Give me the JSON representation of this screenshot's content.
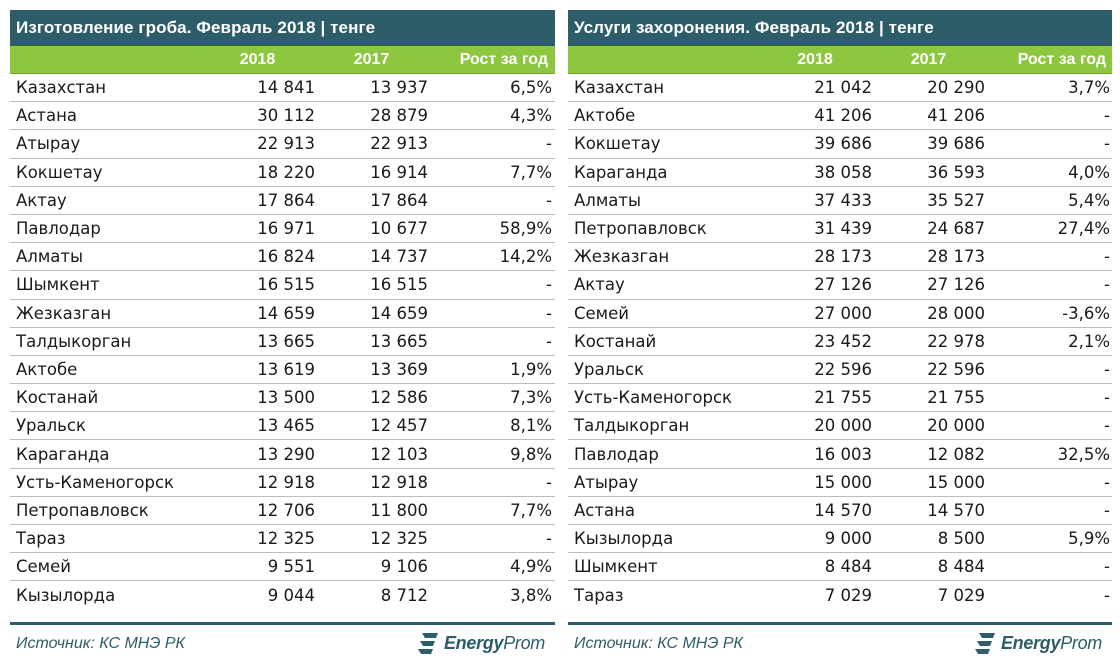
{
  "left": {
    "title": "Изготовление гроба. Февраль 2018 | тенге",
    "headers": {
      "name": "",
      "y2018": "2018",
      "y2017": "2017",
      "growth": "Рост за год"
    },
    "rows": [
      {
        "name": "Казахстан",
        "v2018": "14 841",
        "v2017": "13 937",
        "growth": "6,5%"
      },
      {
        "name": "Астана",
        "v2018": "30 112",
        "v2017": "28 879",
        "growth": "4,3%"
      },
      {
        "name": "Атырау",
        "v2018": "22 913",
        "v2017": "22 913",
        "growth": "-"
      },
      {
        "name": "Кокшетау",
        "v2018": "18 220",
        "v2017": "16 914",
        "growth": "7,7%"
      },
      {
        "name": "Актау",
        "v2018": "17 864",
        "v2017": "17 864",
        "growth": "-"
      },
      {
        "name": "Павлодар",
        "v2018": "16 971",
        "v2017": "10 677",
        "growth": "58,9%"
      },
      {
        "name": "Алматы",
        "v2018": "16 824",
        "v2017": "14 737",
        "growth": "14,2%"
      },
      {
        "name": "Шымкент",
        "v2018": "16 515",
        "v2017": "16 515",
        "growth": "-"
      },
      {
        "name": "Жезказган",
        "v2018": "14 659",
        "v2017": "14 659",
        "growth": "-"
      },
      {
        "name": "Талдыкорган",
        "v2018": "13 665",
        "v2017": "13 665",
        "growth": "-"
      },
      {
        "name": "Актобе",
        "v2018": "13 619",
        "v2017": "13 369",
        "growth": "1,9%"
      },
      {
        "name": "Костанай",
        "v2018": "13 500",
        "v2017": "12 586",
        "growth": "7,3%"
      },
      {
        "name": "Уральск",
        "v2018": "13 465",
        "v2017": "12 457",
        "growth": "8,1%"
      },
      {
        "name": "Караганда",
        "v2018": "13 290",
        "v2017": "12 103",
        "growth": "9,8%"
      },
      {
        "name": "Усть-Каменогорск",
        "v2018": "12 918",
        "v2017": "12 918",
        "growth": "-"
      },
      {
        "name": "Петропавловск",
        "v2018": "12 706",
        "v2017": "11 800",
        "growth": "7,7%"
      },
      {
        "name": "Тараз",
        "v2018": "12 325",
        "v2017": "12 325",
        "growth": "-"
      },
      {
        "name": "Семей",
        "v2018": "9 551",
        "v2017": "9 106",
        "growth": "4,9%"
      },
      {
        "name": "Кызылорда",
        "v2018": "9 044",
        "v2017": "8 712",
        "growth": "3,8%"
      }
    ],
    "source": "Источник: КС МНЭ РК"
  },
  "right": {
    "title": "Услуги захоронения. Февраль 2018 | тенге",
    "headers": {
      "name": "",
      "y2018": "2018",
      "y2017": "2017",
      "growth": "Рост за год"
    },
    "rows": [
      {
        "name": "Казахстан",
        "v2018": "21 042",
        "v2017": "20 290",
        "growth": "3,7%"
      },
      {
        "name": "Актобе",
        "v2018": "41 206",
        "v2017": "41 206",
        "growth": "-"
      },
      {
        "name": "Кокшетау",
        "v2018": "39 686",
        "v2017": "39 686",
        "growth": "-"
      },
      {
        "name": "Караганда",
        "v2018": "38 058",
        "v2017": "36 593",
        "growth": "4,0%"
      },
      {
        "name": "Алматы",
        "v2018": "37 433",
        "v2017": "35 527",
        "growth": "5,4%"
      },
      {
        "name": "Петропавловск",
        "v2018": "31 439",
        "v2017": "24 687",
        "growth": "27,4%"
      },
      {
        "name": "Жезказган",
        "v2018": "28 173",
        "v2017": "28 173",
        "growth": "-"
      },
      {
        "name": "Актау",
        "v2018": "27 126",
        "v2017": "27 126",
        "growth": "-"
      },
      {
        "name": "Семей",
        "v2018": "27 000",
        "v2017": "28 000",
        "growth": "-3,6%"
      },
      {
        "name": "Костанай",
        "v2018": "23 452",
        "v2017": "22 978",
        "growth": "2,1%"
      },
      {
        "name": "Уральск",
        "v2018": "22 596",
        "v2017": "22 596",
        "growth": "-"
      },
      {
        "name": "Усть-Каменогорск",
        "v2018": "21 755",
        "v2017": "21 755",
        "growth": "-"
      },
      {
        "name": "Талдыкорган",
        "v2018": "20 000",
        "v2017": "20 000",
        "growth": "-"
      },
      {
        "name": "Павлодар",
        "v2018": "16 003",
        "v2017": "12 082",
        "growth": "32,5%"
      },
      {
        "name": "Атырау",
        "v2018": "15 000",
        "v2017": "15 000",
        "growth": "-"
      },
      {
        "name": "Астана",
        "v2018": "14 570",
        "v2017": "14 570",
        "growth": "-"
      },
      {
        "name": "Кызылорда",
        "v2018": "9 000",
        "v2017": "8 500",
        "growth": "5,9%"
      },
      {
        "name": "Шымкент",
        "v2018": "8 484",
        "v2017": "8 484",
        "growth": "-"
      },
      {
        "name": "Тараз",
        "v2018": "7 029",
        "v2017": "7 029",
        "growth": "-"
      }
    ],
    "source": "Источник: КС МНЭ РК"
  },
  "brand": {
    "bold": "Energy",
    "light": "Prom",
    "icon": "energyprom-logo-icon"
  },
  "colors": {
    "title_bg": "#2e5d6a",
    "header_bg": "#8dc63f",
    "row_rule": "#bdbdbd"
  }
}
